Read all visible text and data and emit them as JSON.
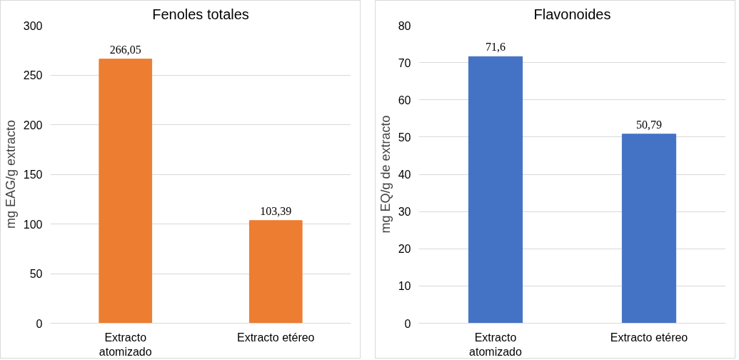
{
  "chart_data": [
    {
      "type": "bar",
      "title": "Fenoles totales",
      "ylabel": "mg EAG/g extracto",
      "categories": [
        "Extracto atomizado",
        "Extracto etéreo"
      ],
      "values": [
        266.05,
        103.39
      ],
      "color": "#ed7d31",
      "value_labels": [
        "266,05",
        "103,39"
      ],
      "ylim": [
        0,
        300
      ],
      "yticks": [
        0,
        50,
        100,
        150,
        200,
        250,
        300
      ],
      "grid": "y",
      "legend": false
    },
    {
      "type": "bar",
      "title": "Flavonoides",
      "ylabel": "mg EQ/g de extracto",
      "categories": [
        "Extracto atomizado",
        "Extracto etéreo"
      ],
      "values": [
        71.6,
        50.79
      ],
      "color": "#4472c4",
      "value_labels": [
        "71,6",
        "50,79"
      ],
      "ylim": [
        0,
        80
      ],
      "yticks": [
        0,
        10,
        20,
        30,
        40,
        50,
        60,
        70,
        80
      ],
      "grid": "y",
      "legend": false
    }
  ]
}
